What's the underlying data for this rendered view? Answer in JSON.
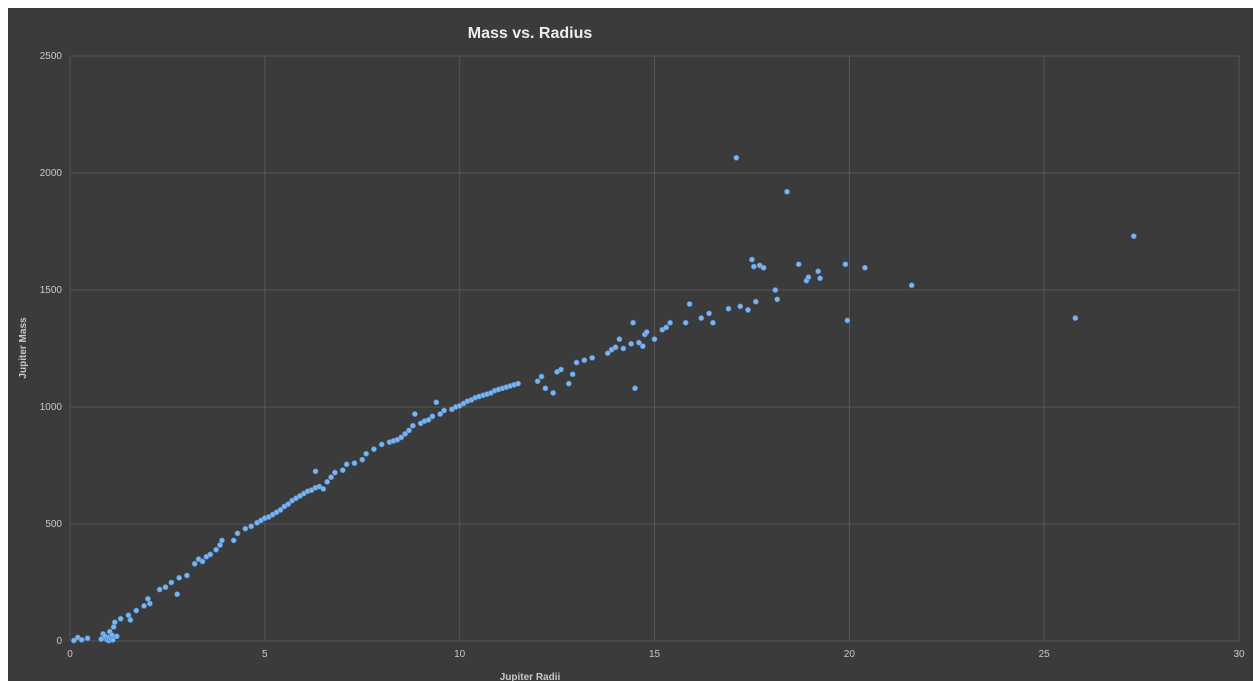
{
  "chart_data": {
    "type": "scatter",
    "title": "Mass vs. Radius",
    "xlabel": "Jupiter Radii",
    "ylabel": "Jupiter Mass",
    "xlim": [
      0,
      30
    ],
    "ylim": [
      0,
      2500
    ],
    "xticks": [
      0,
      5,
      10,
      15,
      20,
      25,
      30
    ],
    "yticks": [
      0,
      500,
      1000,
      1500,
      2000,
      2500
    ],
    "grid": true,
    "marker_color": "#7eb4ee",
    "background": "#3b3b3b",
    "points": [
      [
        0.1,
        2
      ],
      [
        0.2,
        15
      ],
      [
        0.3,
        5
      ],
      [
        0.45,
        12
      ],
      [
        0.8,
        8
      ],
      [
        0.85,
        30
      ],
      [
        0.9,
        20
      ],
      [
        0.95,
        5
      ],
      [
        1.0,
        2
      ],
      [
        1.0,
        15
      ],
      [
        1.02,
        40
      ],
      [
        1.05,
        10
      ],
      [
        1.08,
        25
      ],
      [
        1.1,
        5
      ],
      [
        1.12,
        60
      ],
      [
        1.15,
        80
      ],
      [
        1.2,
        20
      ],
      [
        1.3,
        95
      ],
      [
        1.5,
        110
      ],
      [
        1.55,
        90
      ],
      [
        1.7,
        130
      ],
      [
        1.9,
        150
      ],
      [
        2.0,
        180
      ],
      [
        2.05,
        160
      ],
      [
        2.3,
        220
      ],
      [
        2.45,
        230
      ],
      [
        2.6,
        250
      ],
      [
        2.75,
        200
      ],
      [
        2.8,
        270
      ],
      [
        3.0,
        280
      ],
      [
        3.2,
        330
      ],
      [
        3.3,
        350
      ],
      [
        3.4,
        340
      ],
      [
        3.5,
        360
      ],
      [
        3.6,
        370
      ],
      [
        3.75,
        390
      ],
      [
        3.85,
        410
      ],
      [
        3.9,
        430
      ],
      [
        4.2,
        430
      ],
      [
        4.3,
        460
      ],
      [
        4.5,
        480
      ],
      [
        4.65,
        490
      ],
      [
        4.8,
        505
      ],
      [
        4.9,
        515
      ],
      [
        5.0,
        525
      ],
      [
        5.1,
        530
      ],
      [
        5.2,
        540
      ],
      [
        5.3,
        550
      ],
      [
        5.4,
        560
      ],
      [
        5.5,
        575
      ],
      [
        5.6,
        585
      ],
      [
        5.7,
        600
      ],
      [
        5.8,
        610
      ],
      [
        5.9,
        620
      ],
      [
        6.0,
        630
      ],
      [
        6.1,
        640
      ],
      [
        6.2,
        645
      ],
      [
        6.3,
        655
      ],
      [
        6.3,
        725
      ],
      [
        6.4,
        660
      ],
      [
        6.5,
        650
      ],
      [
        6.6,
        680
      ],
      [
        6.7,
        700
      ],
      [
        6.8,
        720
      ],
      [
        7.0,
        730
      ],
      [
        7.1,
        755
      ],
      [
        7.3,
        760
      ],
      [
        7.5,
        775
      ],
      [
        7.6,
        800
      ],
      [
        7.8,
        820
      ],
      [
        8.0,
        840
      ],
      [
        8.2,
        850
      ],
      [
        8.3,
        855
      ],
      [
        8.4,
        860
      ],
      [
        8.5,
        870
      ],
      [
        8.6,
        885
      ],
      [
        8.7,
        900
      ],
      [
        8.8,
        920
      ],
      [
        8.85,
        970
      ],
      [
        9.0,
        930
      ],
      [
        9.1,
        940
      ],
      [
        9.2,
        945
      ],
      [
        9.3,
        960
      ],
      [
        9.4,
        1020
      ],
      [
        9.5,
        970
      ],
      [
        9.6,
        985
      ],
      [
        9.8,
        990
      ],
      [
        9.9,
        1000
      ],
      [
        10.0,
        1005
      ],
      [
        10.1,
        1015
      ],
      [
        10.2,
        1025
      ],
      [
        10.3,
        1030
      ],
      [
        10.4,
        1040
      ],
      [
        10.5,
        1045
      ],
      [
        10.6,
        1050
      ],
      [
        10.7,
        1055
      ],
      [
        10.8,
        1060
      ],
      [
        10.9,
        1070
      ],
      [
        11.0,
        1075
      ],
      [
        11.1,
        1080
      ],
      [
        11.2,
        1085
      ],
      [
        11.3,
        1090
      ],
      [
        11.4,
        1095
      ],
      [
        11.5,
        1100
      ],
      [
        12.0,
        1110
      ],
      [
        12.1,
        1130
      ],
      [
        12.2,
        1080
      ],
      [
        12.4,
        1060
      ],
      [
        12.5,
        1150
      ],
      [
        12.6,
        1160
      ],
      [
        12.8,
        1100
      ],
      [
        12.9,
        1140
      ],
      [
        13.0,
        1190
      ],
      [
        13.2,
        1200
      ],
      [
        13.4,
        1210
      ],
      [
        13.8,
        1230
      ],
      [
        13.9,
        1245
      ],
      [
        14.0,
        1255
      ],
      [
        14.1,
        1290
      ],
      [
        14.2,
        1250
      ],
      [
        14.4,
        1270
      ],
      [
        14.45,
        1360
      ],
      [
        14.5,
        1080
      ],
      [
        14.6,
        1275
      ],
      [
        14.7,
        1260
      ],
      [
        14.75,
        1310
      ],
      [
        14.8,
        1320
      ],
      [
        15.0,
        1290
      ],
      [
        15.2,
        1330
      ],
      [
        15.3,
        1340
      ],
      [
        15.4,
        1360
      ],
      [
        15.8,
        1360
      ],
      [
        15.9,
        1440
      ],
      [
        16.2,
        1380
      ],
      [
        16.4,
        1400
      ],
      [
        16.5,
        1360
      ],
      [
        16.9,
        1420
      ],
      [
        17.1,
        2065
      ],
      [
        17.2,
        1430
      ],
      [
        17.4,
        1415
      ],
      [
        17.5,
        1630
      ],
      [
        17.55,
        1600
      ],
      [
        17.6,
        1450
      ],
      [
        17.7,
        1605
      ],
      [
        17.8,
        1595
      ],
      [
        18.1,
        1500
      ],
      [
        18.15,
        1460
      ],
      [
        18.4,
        1920
      ],
      [
        18.7,
        1610
      ],
      [
        18.9,
        1540
      ],
      [
        18.95,
        1555
      ],
      [
        19.2,
        1580
      ],
      [
        19.25,
        1550
      ],
      [
        19.9,
        1610
      ],
      [
        19.95,
        1370
      ],
      [
        20.4,
        1595
      ],
      [
        21.6,
        1520
      ],
      [
        25.8,
        1380
      ],
      [
        27.3,
        1730
      ]
    ]
  }
}
